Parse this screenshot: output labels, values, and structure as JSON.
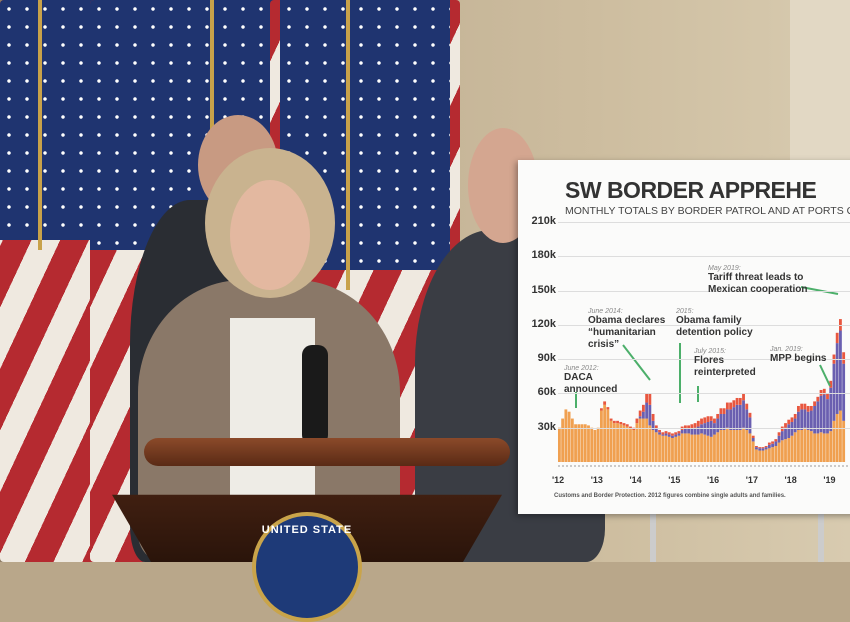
{
  "scene": {
    "poster": {
      "title": "SW BORDER APPREHE",
      "subtitle": "MONTHLY TOTALS BY BORDER PATROL AND AT PORTS O",
      "source": "Customs and Border Protection. 2012 figures combine single adults and families.",
      "annotations": [
        {
          "date": "June 2012:",
          "text": [
            "DACA",
            "announced"
          ]
        },
        {
          "date": "June 2014:",
          "text": [
            "Obama declares",
            "“humanitarian",
            "crisis”"
          ]
        },
        {
          "date": "2015:",
          "text": [
            "Obama family",
            "detention policy"
          ]
        },
        {
          "date": "July 2015:",
          "text": [
            "Flores",
            "reinterpreted"
          ]
        },
        {
          "date": "May 2019:",
          "text": [
            "Tariff threat leads to",
            "Mexican cooperation"
          ]
        },
        {
          "date": "Jan. 2019:",
          "text": [
            "MPP begins"
          ]
        }
      ]
    },
    "seal_text": "UNITED STATE",
    "colors": {
      "single_adults": "#f0a050",
      "families": "#6a5fb0",
      "unaccompanied": "#e8573f",
      "arrow": "#4caf6a"
    }
  },
  "chart_data": {
    "type": "bar",
    "stacked": true,
    "title": "SW BORDER APPREHE",
    "subtitle": "MONTHLY TOTALS BY BORDER PATROL AND AT PORTS O",
    "y_ticks": [
      "30k",
      "60k",
      "90k",
      "120k",
      "150k",
      "180k",
      "210k"
    ],
    "x_ticks": [
      "'12",
      "'13",
      "'14",
      "'15",
      "'16",
      "'17",
      "'18",
      "'19"
    ],
    "ylim": [
      0,
      210000
    ],
    "x_start": "2012-01",
    "series": [
      {
        "values": [
          30,
          38,
          46,
          44,
          38,
          33,
          33,
          33,
          33,
          32,
          30,
          28,
          30,
          45,
          50,
          46,
          36,
          34,
          34,
          33,
          32,
          31,
          29,
          28,
          34,
          38,
          38,
          38,
          32,
          28,
          26,
          24,
          23,
          23,
          22,
          21,
          22,
          23,
          25,
          25,
          25,
          24,
          24,
          24,
          25,
          24,
          23,
          22,
          24,
          26,
          28,
          28,
          30,
          28,
          28,
          28,
          28,
          30,
          28,
          25,
          18,
          11,
          10,
          10,
          11,
          12,
          13,
          14,
          17,
          19,
          20,
          21,
          23,
          26,
          28,
          28,
          30,
          28,
          27,
          25,
          25,
          26,
          25,
          25,
          27,
          36,
          42,
          45,
          36
        ]
      },
      {
        "values": [
          0,
          0,
          0,
          0,
          0,
          0,
          0,
          0,
          0,
          0,
          0,
          0,
          0,
          0,
          0,
          0,
          0,
          0,
          0,
          0,
          0,
          0,
          0,
          0,
          0,
          2,
          6,
          14,
          18,
          8,
          3,
          2,
          1,
          2,
          2,
          2,
          2,
          2,
          3,
          4,
          4,
          5,
          6,
          7,
          8,
          10,
          12,
          14,
          10,
          12,
          14,
          14,
          16,
          18,
          20,
          22,
          22,
          24,
          18,
          14,
          3,
          2,
          2,
          2,
          2,
          3,
          3,
          4,
          6,
          8,
          10,
          12,
          12,
          12,
          16,
          18,
          16,
          16,
          18,
          24,
          28,
          32,
          34,
          30,
          38,
          50,
          62,
          70,
          50
        ]
      },
      {
        "values": [
          0,
          0,
          0,
          0,
          0,
          0,
          0,
          0,
          0,
          0,
          0,
          0,
          0,
          2,
          3,
          2,
          2,
          2,
          2,
          2,
          2,
          2,
          2,
          2,
          4,
          5,
          6,
          8,
          10,
          6,
          3,
          2,
          2,
          2,
          2,
          2,
          2,
          2,
          3,
          3,
          3,
          4,
          4,
          5,
          5,
          5,
          5,
          4,
          4,
          4,
          5,
          5,
          6,
          6,
          6,
          6,
          6,
          6,
          5,
          4,
          2,
          1,
          1,
          1,
          1,
          2,
          2,
          2,
          3,
          4,
          4,
          4,
          4,
          4,
          5,
          5,
          5,
          5,
          4,
          4,
          4,
          5,
          5,
          5,
          6,
          8,
          9,
          10,
          10
        ]
      }
    ]
  }
}
